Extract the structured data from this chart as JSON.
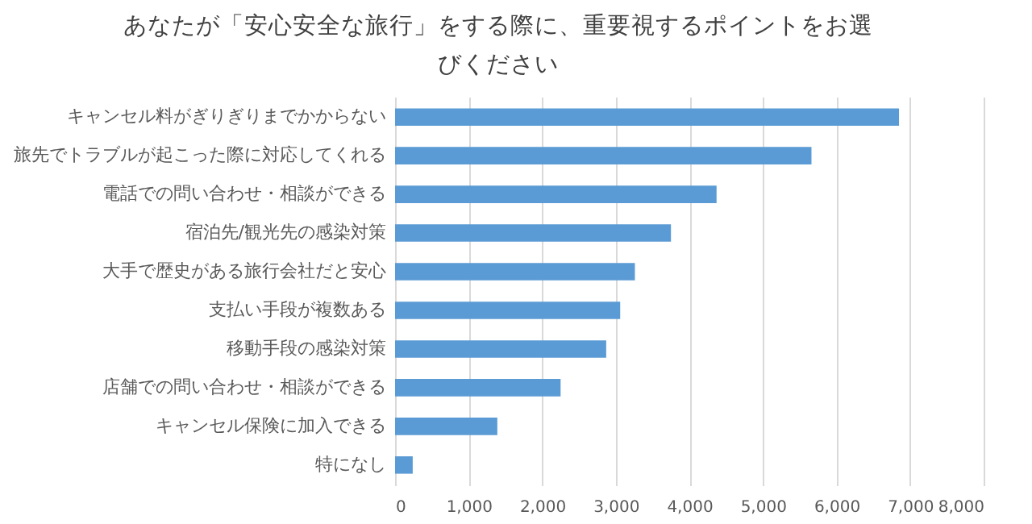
{
  "chart_data": {
    "type": "bar",
    "orientation": "horizontal",
    "title": "あなたが「安心安全な旅行」をする際に、重要視するポイントをお選びください",
    "categories": [
      "キャンセル料がぎりぎりまでかからない",
      "旅先でトラブルが起こった際に対応してくれる",
      "電話での問い合わせ・相談ができる",
      "宿泊先/観光先の感染対策",
      "大手で歴史がある旅行会社だと安心",
      "支払い手段が複数ある",
      "移動手段の感染対策",
      "店舗での問い合わせ・相談ができる",
      "キャンセル保険に加入できる",
      "特になし"
    ],
    "values": [
      6850,
      5660,
      4370,
      3750,
      3260,
      3060,
      2870,
      2250,
      1390,
      240
    ],
    "color": "#5b9bd5",
    "xlim": [
      0,
      8000
    ],
    "xticks": [
      0,
      {
        "value": 1000,
        "label": "1,000"
      },
      {
        "value": 2000,
        "label": "2,000"
      },
      {
        "value": 3000,
        "label": "3,000"
      },
      {
        "value": 4000,
        "label": "4,000"
      },
      {
        "value": 5000,
        "label": "5,000"
      },
      {
        "value": 6000,
        "label": "6,000"
      },
      {
        "value": 7000,
        "label": "7,000"
      },
      {
        "value": 8000,
        "label": "8,000"
      }
    ],
    "grid": "x"
  }
}
